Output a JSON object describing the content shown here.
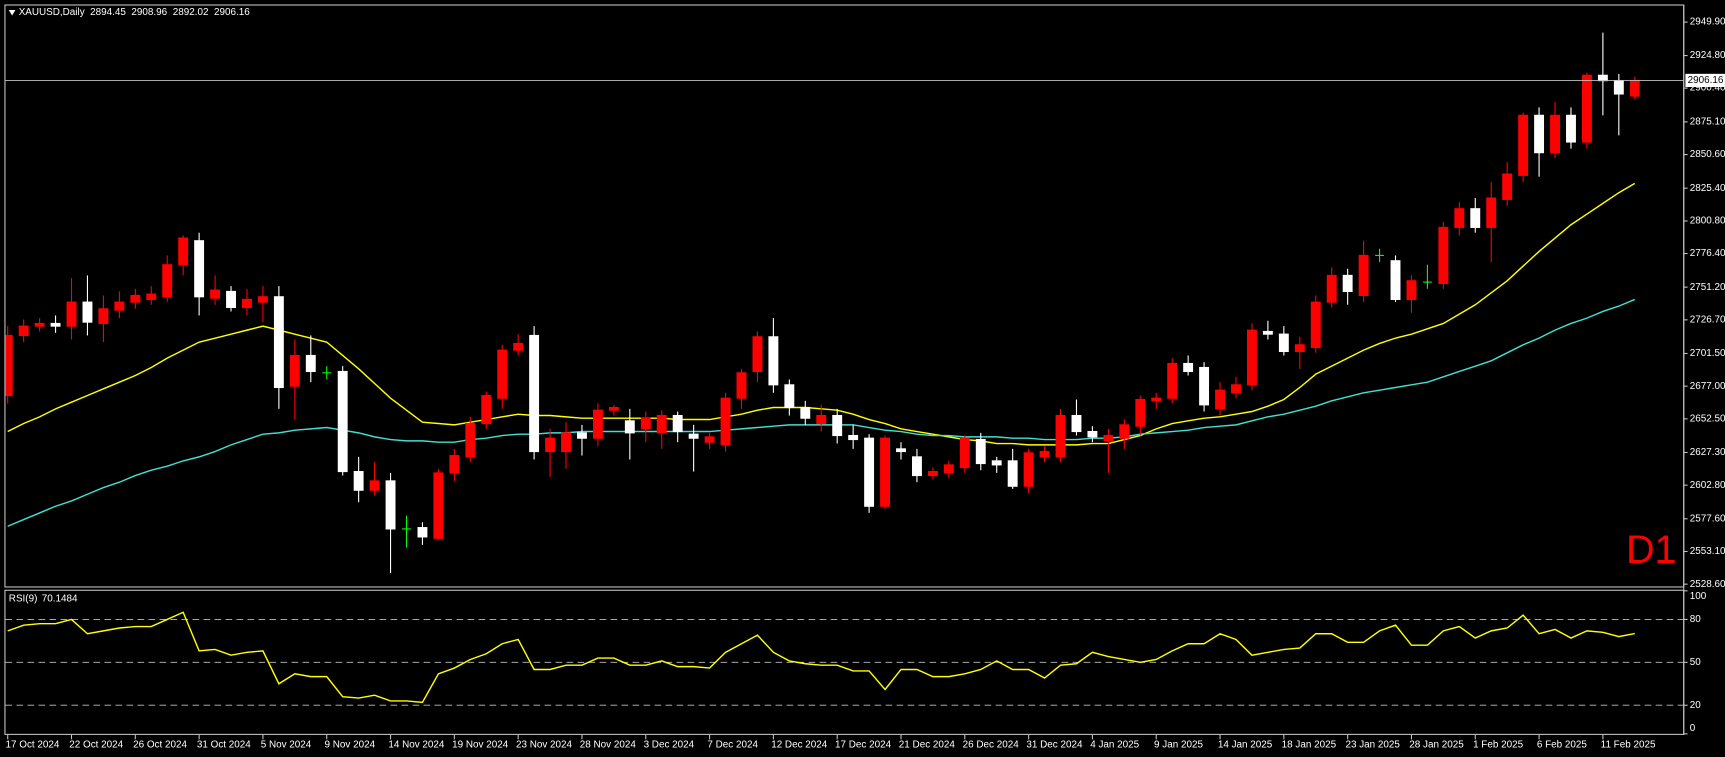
{
  "chart_data": [
    {
      "type": "candlestick",
      "title": "XAUUSD,Daily",
      "annotation": "D1",
      "categories": [
        "17 Oct 2024",
        null,
        null,
        null,
        "22 Oct 2024",
        null,
        null,
        null,
        "26 Oct 2024",
        null,
        null,
        null,
        "31 Oct 2024",
        null,
        null,
        null,
        "5 Nov 2024",
        null,
        null,
        null,
        "9 Nov 2024",
        null,
        null,
        null,
        "14 Nov 2024",
        null,
        null,
        null,
        "19 Nov 2024",
        null,
        null,
        null,
        "23 Nov 2024",
        null,
        null,
        null,
        "28 Nov 2024",
        null,
        null,
        null,
        "3 Dec 2024",
        null,
        null,
        null,
        "7 Dec 2024",
        null,
        null,
        null,
        "12 Dec 2024",
        null,
        null,
        null,
        "17 Dec 2024",
        null,
        null,
        null,
        "21 Dec 2024",
        null,
        null,
        null,
        "26 Dec 2024",
        null,
        null,
        null,
        "31 Dec 2024",
        null,
        null,
        null,
        "4 Jan 2025",
        null,
        null,
        null,
        "9 Jan 2025",
        null,
        null,
        null,
        "14 Jan 2025",
        null,
        null,
        null,
        "18 Jan 2025",
        null,
        null,
        null,
        "23 Jan 2025",
        null,
        null,
        null,
        "28 Jan 2025",
        null,
        null,
        null,
        "1 Feb 2025",
        null,
        null,
        null,
        "6 Feb 2025",
        null,
        null,
        null,
        "11 Feb 2025",
        null,
        null
      ],
      "open": [
        2670,
        2715,
        2722,
        2724,
        2722,
        2740,
        2724,
        2734,
        2740,
        2742,
        2744,
        2768,
        2786,
        2743,
        2748,
        2736,
        2740,
        2744,
        2677,
        2700,
        2687,
        2688,
        2613,
        2599,
        2606,
        2570,
        2571,
        2563,
        2612,
        2624,
        2649,
        2668,
        2704,
        2715,
        2628,
        2628,
        2642,
        2638,
        2659,
        2651,
        2645,
        2642,
        2655,
        2641,
        2635,
        2633,
        2668,
        2688,
        2714,
        2678,
        2661,
        2649,
        2655,
        2640,
        2638,
        2587,
        2630,
        2624,
        2610,
        2612,
        2616,
        2637,
        2621,
        2621,
        2602,
        2624,
        2624,
        2655,
        2643,
        2636,
        2638,
        2647,
        2666,
        2668,
        2694,
        2691,
        2660,
        2672,
        2678,
        2718,
        2716,
        2703,
        2706,
        2740,
        2760,
        2745,
        2775,
        2771,
        2742,
        2755,
        2754,
        2796,
        2810,
        2796,
        2817,
        2835,
        2880,
        2852,
        2880,
        2860,
        2910,
        2906,
        2894.45
      ],
      "high": [
        2722,
        2727,
        2728,
        2730,
        2758,
        2760,
        2745,
        2748,
        2750,
        2752,
        2775,
        2790,
        2792,
        2760,
        2752,
        2750,
        2752,
        2752,
        2712,
        2715,
        2692,
        2692,
        2624,
        2620,
        2612,
        2580,
        2575,
        2615,
        2630,
        2654,
        2673,
        2708,
        2716,
        2722,
        2645,
        2650,
        2648,
        2664,
        2663,
        2660,
        2658,
        2659,
        2658,
        2648,
        2642,
        2672,
        2690,
        2718,
        2728,
        2682,
        2666,
        2663,
        2660,
        2648,
        2641,
        2640,
        2635,
        2630,
        2616,
        2621,
        2640,
        2642,
        2624,
        2630,
        2630,
        2632,
        2660,
        2667,
        2647,
        2645,
        2652,
        2670,
        2672,
        2698,
        2700,
        2695,
        2680,
        2684,
        2724,
        2726,
        2722,
        2714,
        2745,
        2766,
        2765,
        2786,
        2780,
        2775,
        2760,
        2768,
        2800,
        2815,
        2818,
        2830,
        2845,
        2882,
        2886,
        2890,
        2886,
        2912,
        2942,
        2911,
        2908.96
      ],
      "low": [
        2664,
        2710,
        2718,
        2717,
        2712,
        2715,
        2710,
        2728,
        2735,
        2738,
        2740,
        2760,
        2730,
        2738,
        2733,
        2730,
        2725,
        2660,
        2652,
        2680,
        2682,
        2610,
        2590,
        2595,
        2537,
        2556,
        2558,
        2562,
        2606,
        2620,
        2645,
        2660,
        2700,
        2622,
        2609,
        2615,
        2625,
        2632,
        2655,
        2622,
        2635,
        2630,
        2635,
        2613,
        2630,
        2628,
        2660,
        2680,
        2672,
        2655,
        2648,
        2643,
        2634,
        2630,
        2582,
        2585,
        2622,
        2605,
        2607,
        2608,
        2612,
        2614,
        2612,
        2600,
        2597,
        2620,
        2620,
        2640,
        2635,
        2612,
        2630,
        2640,
        2660,
        2664,
        2685,
        2658,
        2655,
        2668,
        2674,
        2712,
        2700,
        2690,
        2702,
        2736,
        2738,
        2740,
        2770,
        2740,
        2732,
        2750,
        2750,
        2790,
        2792,
        2770,
        2812,
        2830,
        2834,
        2848,
        2855,
        2855,
        2880,
        2865,
        2892.02
      ],
      "close": [
        2715,
        2722,
        2724,
        2722,
        2740,
        2725,
        2735,
        2740,
        2745,
        2746,
        2768,
        2788,
        2744,
        2749,
        2736,
        2742,
        2744,
        2676,
        2700,
        2688,
        2687,
        2613,
        2599,
        2606,
        2570,
        2570,
        2564,
        2612,
        2625,
        2649,
        2670,
        2704,
        2709,
        2628,
        2638,
        2642,
        2638,
        2659,
        2661,
        2642,
        2653,
        2655,
        2643,
        2638,
        2639,
        2668,
        2687,
        2714,
        2678,
        2661,
        2653,
        2655,
        2640,
        2637,
        2587,
        2638,
        2628,
        2610,
        2613,
        2618,
        2638,
        2619,
        2618,
        2602,
        2627,
        2628,
        2655,
        2643,
        2639,
        2640,
        2648,
        2667,
        2668,
        2694,
        2688,
        2663,
        2674,
        2678,
        2719,
        2716,
        2703,
        2708,
        2740,
        2760,
        2748,
        2775,
        2775,
        2742,
        2756,
        2755,
        2796,
        2810,
        2796,
        2818,
        2836,
        2880,
        2852,
        2880,
        2860,
        2910,
        2906,
        2896,
        2906.16
      ],
      "up_color": "#ff0000",
      "down_color": "#ffffff",
      "doji_color": "#00ff00",
      "lines": [
        {
          "color": "#ffff00",
          "values": [
            2643,
            2649,
            2654,
            2660,
            2665,
            2670,
            2675,
            2680,
            2685,
            2691,
            2698,
            2704,
            2710,
            2713,
            2716,
            2719,
            2722,
            2719,
            2716,
            2713,
            2710,
            2700,
            2690,
            2679,
            2668,
            2659,
            2650,
            2649,
            2648,
            2650,
            2652,
            2654,
            2656,
            2655,
            2655,
            2654,
            2653,
            2653,
            2653,
            2653,
            2653,
            2653,
            2652,
            2652,
            2652,
            2654,
            2656,
            2659,
            2661,
            2661,
            2661,
            2660,
            2659,
            2656,
            2652,
            2649,
            2645,
            2643,
            2641,
            2639,
            2637,
            2636,
            2634,
            2634,
            2633,
            2633,
            2633,
            2633,
            2634,
            2634,
            2637,
            2640,
            2645,
            2649,
            2651,
            2653,
            2654,
            2656,
            2658,
            2662,
            2667,
            2676,
            2686,
            2692,
            2698,
            2704,
            2709,
            2713,
            2716,
            2720,
            2724,
            2731,
            2738,
            2747,
            2756,
            2767,
            2778,
            2788,
            2798,
            2806,
            2814,
            2822,
            2829
          ]
        },
        {
          "color": "#40e0d0",
          "values": [
            2572,
            2577,
            2582,
            2587,
            2591,
            2596,
            2601,
            2605,
            2610,
            2614,
            2617,
            2621,
            2624,
            2628,
            2633,
            2637,
            2641,
            2642,
            2644,
            2645,
            2646,
            2644,
            2642,
            2639,
            2637,
            2636,
            2636,
            2635,
            2635,
            2637,
            2638,
            2640,
            2641,
            2641,
            2642,
            2642,
            2643,
            2643,
            2643,
            2643,
            2643,
            2643,
            2643,
            2643,
            2643,
            2644,
            2645,
            2646,
            2647,
            2648,
            2648,
            2648,
            2648,
            2648,
            2646,
            2644,
            2643,
            2641,
            2640,
            2640,
            2639,
            2639,
            2639,
            2638,
            2638,
            2637,
            2637,
            2637,
            2638,
            2638,
            2639,
            2641,
            2642,
            2643,
            2644,
            2646,
            2647,
            2648,
            2651,
            2654,
            2656,
            2659,
            2662,
            2666,
            2669,
            2672,
            2674,
            2676,
            2678,
            2680,
            2684,
            2688,
            2692,
            2696,
            2702,
            2708,
            2713,
            2719,
            2724,
            2728,
            2733,
            2737,
            2742
          ]
        }
      ],
      "ylim": [
        2526.9,
        2963.1
      ],
      "yticks": [
        {
          "value": 2949.9,
          "label": "2949.90"
        },
        {
          "value": 2924.8,
          "label": "2924.80"
        },
        {
          "value": 2900.4,
          "label": "2900.40"
        },
        {
          "value": 2875.1,
          "label": "2875.10"
        },
        {
          "value": 2850.6,
          "label": "2850.60"
        },
        {
          "value": 2825.4,
          "label": "2825.40"
        },
        {
          "value": 2800.8,
          "label": "2800.80"
        },
        {
          "value": 2776.4,
          "label": "2776.40"
        },
        {
          "value": 2751.2,
          "label": "2751.20"
        },
        {
          "value": 2726.7,
          "label": "2726.70"
        },
        {
          "value": 2701.5,
          "label": "2701.50"
        },
        {
          "value": 2677,
          "label": "2677.00"
        },
        {
          "value": 2652.5,
          "label": "2652.50"
        },
        {
          "value": 2627.3,
          "label": "2627.30"
        },
        {
          "value": 2602.8,
          "label": "2602.80"
        },
        {
          "value": 2577.6,
          "label": "2577.60"
        },
        {
          "value": 2553.1,
          "label": "2553.10"
        },
        {
          "value": 2528.6,
          "label": "2528.60"
        }
      ]
    },
    {
      "type": "line",
      "title": "RSI(9)",
      "color": "#ffff00",
      "values": [
        72,
        76,
        77,
        77,
        80,
        70,
        72,
        74,
        75,
        75,
        80,
        85,
        58,
        59,
        55,
        57,
        58,
        35,
        42,
        40,
        40,
        26,
        25,
        27,
        23,
        23,
        22,
        42,
        46,
        52,
        56,
        63,
        66,
        45,
        45,
        48,
        48,
        53,
        53,
        48,
        48,
        51,
        47,
        47,
        46,
        57,
        63,
        69,
        57,
        51,
        49,
        48,
        48,
        44,
        44,
        31,
        45,
        45,
        40,
        40,
        42,
        45,
        51,
        45,
        45,
        39,
        48,
        49,
        57,
        54,
        52,
        50,
        52,
        58,
        63,
        63,
        70,
        66,
        55,
        57,
        59,
        60,
        70,
        70,
        64,
        64,
        72,
        76,
        62,
        62,
        72,
        75,
        67,
        72,
        74,
        83,
        70,
        73,
        67,
        72,
        71,
        68,
        70.1484
      ],
      "ylim": [
        0,
        100
      ],
      "yticks": [
        0,
        20,
        50,
        80,
        100
      ]
    }
  ]
}
